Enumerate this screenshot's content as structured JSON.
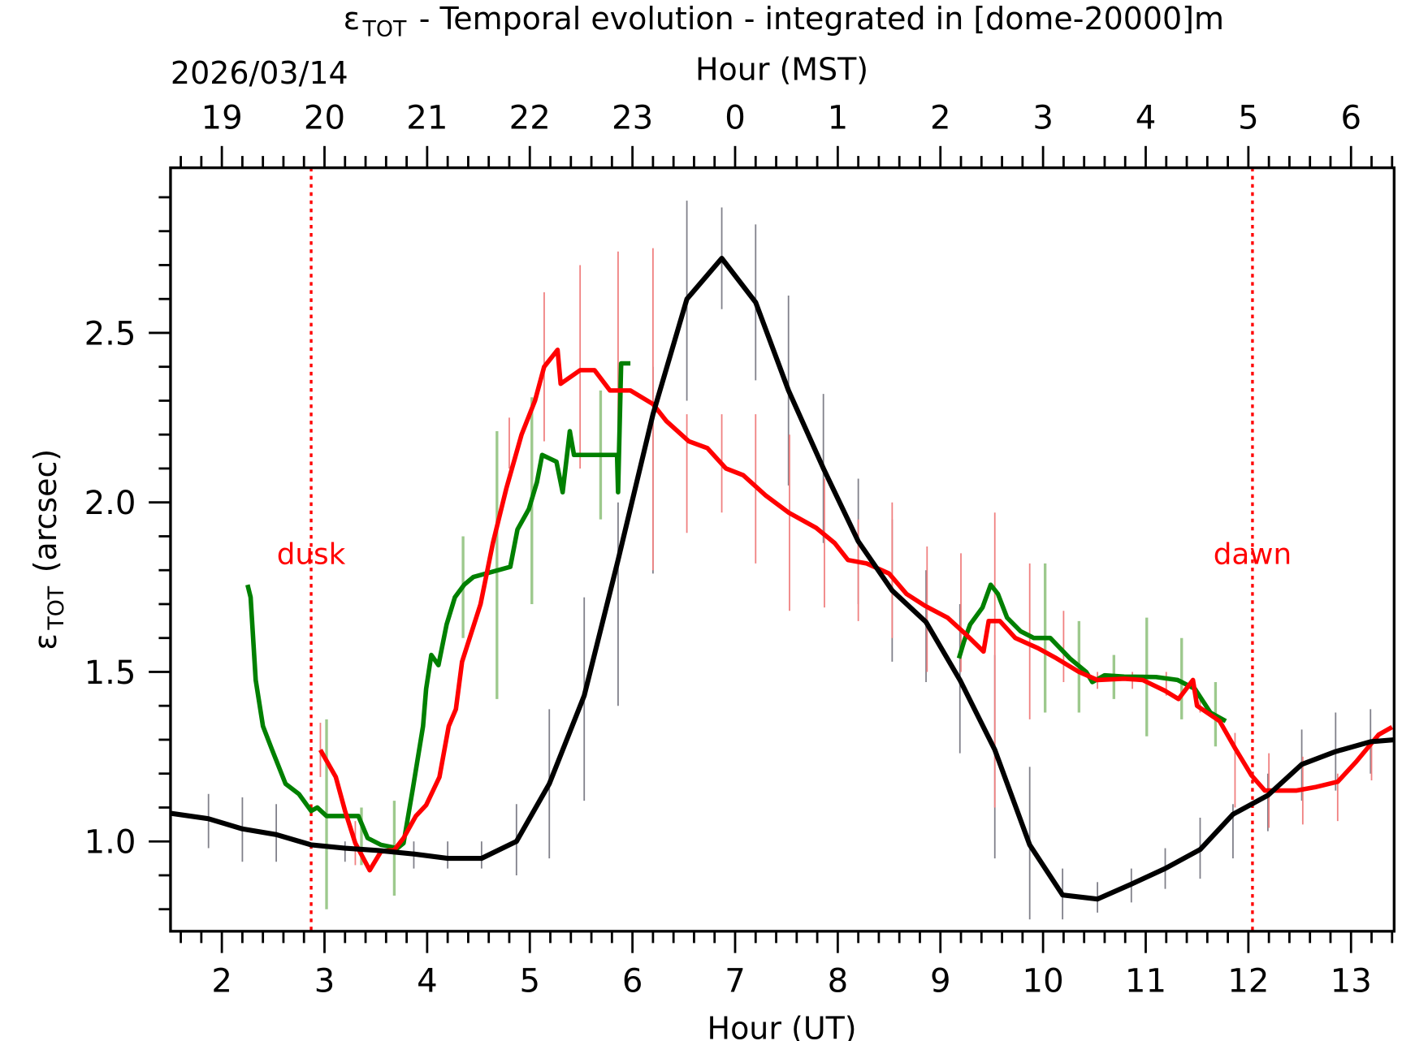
{
  "chart_data": {
    "type": "line",
    "title": {
      "symbol": "ε",
      "sub": "TOT",
      "rest": " - Temporal evolution - integrated in [dome-20000]m"
    },
    "xlabel": "Hour (UT)",
    "x2label": "Hour (MST)",
    "date_label": "2026/03/14",
    "ylabel": {
      "symbol": "ε",
      "sub": "TOT",
      "rest": " (arcsec)"
    },
    "xlim": [
      1.5,
      13.42
    ],
    "ylim": [
      0.735,
      2.987
    ],
    "x_ticks": [
      2,
      3,
      4,
      5,
      6,
      7,
      8,
      9,
      10,
      11,
      12,
      13
    ],
    "x_tick_labels": [
      "2",
      "3",
      "4",
      "5",
      "6",
      "7",
      "8",
      "9",
      "10",
      "11",
      "12",
      "13"
    ],
    "x2_tick_labels": [
      "19",
      "20",
      "21",
      "22",
      "23",
      "0",
      "1",
      "2",
      "3",
      "4",
      "5",
      "6"
    ],
    "y_ticks": [
      1.0,
      1.5,
      2.0,
      2.5
    ],
    "y_tick_labels": [
      "1.0",
      "1.5",
      "2.0",
      "2.5"
    ],
    "grid": false,
    "annotations": [
      {
        "text": "dusk",
        "x": 2.87,
        "y": 1.85
      },
      {
        "text": "dawn",
        "x": 12.04,
        "y": 1.85
      }
    ],
    "vlines": [
      2.87,
      12.04
    ],
    "colors": {
      "black": "#000000",
      "red": "#ff0000",
      "green": "#008000",
      "vline": "#ff0000",
      "black_err": "#80808a",
      "red_err": "#f08080",
      "green_err": "#9dc98d"
    },
    "series": [
      {
        "color": "black",
        "x": [
          1.5,
          1.87,
          2.2,
          2.53,
          2.87,
          3.2,
          3.53,
          3.87,
          4.2,
          4.53,
          4.87,
          5.19,
          5.53,
          5.86,
          6.2,
          6.53,
          6.87,
          7.2,
          7.52,
          7.86,
          8.2,
          8.53,
          8.86,
          9.19,
          9.53,
          9.87,
          10.19,
          10.53,
          10.86,
          11.19,
          11.53,
          11.85,
          12.19,
          12.52,
          12.85,
          13.19,
          13.42
        ],
        "y": [
          1.083,
          1.067,
          1.037,
          1.02,
          0.99,
          0.98,
          0.973,
          0.963,
          0.95,
          0.95,
          1.0,
          1.17,
          1.43,
          1.83,
          2.26,
          2.6,
          2.72,
          2.59,
          2.33,
          2.1,
          1.885,
          1.74,
          1.647,
          1.476,
          1.27,
          0.99,
          0.842,
          0.83,
          0.874,
          0.92,
          0.976,
          1.08,
          1.136,
          1.227,
          1.265,
          1.294,
          1.3
        ],
        "err_x": [
          1.5,
          1.87,
          2.2,
          2.53,
          3.2,
          3.87,
          4.2,
          4.53,
          4.87,
          5.19,
          5.53,
          5.86,
          6.2,
          6.53,
          6.87,
          7.2,
          7.52,
          7.86,
          8.2,
          8.53,
          8.86,
          9.19,
          9.53,
          9.87,
          10.19,
          10.53,
          10.86,
          11.19,
          11.53,
          11.85,
          12.19,
          12.52,
          12.85,
          13.19
        ],
        "err_hi": [
          1.17,
          1.14,
          1.13,
          1.11,
          1.0,
          1.0,
          1.0,
          1.0,
          1.11,
          1.39,
          1.72,
          2.0,
          2.4,
          2.89,
          2.87,
          2.82,
          2.61,
          2.32,
          2.07,
          1.95,
          1.8,
          1.7,
          1.55,
          1.22,
          0.92,
          0.88,
          0.92,
          0.98,
          1.07,
          1.11,
          1.2,
          1.33,
          1.38,
          1.39
        ],
        "err_lo": [
          0.98,
          0.98,
          0.94,
          0.94,
          0.94,
          0.92,
          0.92,
          0.92,
          0.9,
          0.95,
          1.12,
          1.4,
          1.79,
          2.3,
          2.57,
          2.36,
          2.05,
          1.88,
          1.7,
          1.53,
          1.47,
          1.26,
          0.95,
          0.77,
          0.77,
          0.79,
          0.82,
          0.86,
          0.89,
          0.95,
          1.03,
          1.12,
          1.15,
          1.2
        ]
      },
      {
        "color": "red",
        "x": [
          2.96,
          3.11,
          3.2,
          3.3,
          3.44,
          3.55,
          3.68,
          3.77,
          3.89,
          3.99,
          4.12,
          4.21,
          4.28,
          4.34,
          4.52,
          4.64,
          4.77,
          4.92,
          5.05,
          5.14,
          5.27,
          5.3,
          5.49,
          5.63,
          5.78,
          5.98,
          6.2,
          6.33,
          6.55,
          6.73,
          6.91,
          7.08,
          7.3,
          7.52,
          7.79,
          7.97,
          8.1,
          8.28,
          8.5,
          8.67,
          8.85,
          9.07,
          9.25,
          9.42,
          9.47,
          9.58,
          9.73,
          9.95,
          10.13,
          10.35,
          10.53,
          10.79,
          10.97,
          11.19,
          11.32,
          11.46,
          11.5,
          11.72,
          11.87,
          12.03,
          12.16,
          12.47,
          12.65,
          12.87,
          13.05,
          13.27,
          13.4
        ],
        "y": [
          1.27,
          1.19,
          1.09,
          0.995,
          0.915,
          0.97,
          0.975,
          1.01,
          1.075,
          1.107,
          1.19,
          1.34,
          1.39,
          1.53,
          1.7,
          1.88,
          2.04,
          2.2,
          2.3,
          2.4,
          2.45,
          2.35,
          2.39,
          2.39,
          2.33,
          2.33,
          2.29,
          2.24,
          2.18,
          2.16,
          2.1,
          2.08,
          2.02,
          1.97,
          1.925,
          1.88,
          1.83,
          1.82,
          1.79,
          1.73,
          1.695,
          1.66,
          1.61,
          1.56,
          1.65,
          1.65,
          1.6,
          1.57,
          1.54,
          1.5,
          1.476,
          1.48,
          1.476,
          1.444,
          1.42,
          1.476,
          1.4,
          1.355,
          1.275,
          1.195,
          1.15,
          1.15,
          1.16,
          1.176,
          1.235,
          1.315,
          1.337
        ],
        "err_x": [
          2.96,
          3.3,
          4.8,
          5.14,
          5.49,
          5.86,
          6.2,
          6.53,
          6.87,
          7.2,
          7.53,
          7.87,
          8.2,
          8.53,
          8.87,
          9.2,
          9.53,
          9.87,
          10.2,
          10.53,
          10.87,
          11.2,
          11.53,
          11.87,
          12.2,
          12.53,
          12.87,
          13.2
        ],
        "err_hi": [
          1.35,
          1.06,
          2.25,
          2.62,
          2.7,
          2.74,
          2.75,
          2.26,
          2.26,
          2.26,
          2.2,
          2.07,
          1.95,
          2.0,
          1.87,
          1.85,
          1.97,
          1.82,
          1.68,
          1.5,
          1.5,
          1.5,
          1.42,
          1.32,
          1.26,
          1.25,
          1.2,
          1.3
        ],
        "err_lo": [
          1.19,
          0.93,
          2.1,
          2.18,
          2.1,
          2.2,
          1.8,
          1.91,
          1.97,
          1.82,
          1.68,
          1.69,
          1.65,
          1.6,
          1.5,
          1.5,
          1.1,
          1.36,
          1.47,
          1.45,
          1.45,
          1.43,
          1.38,
          1.1,
          1.04,
          1.05,
          1.06,
          1.18
        ]
      },
      {
        "color": "green",
        "segments": [
          {
            "x": [
              2.25,
              2.28,
              2.33,
              2.4,
              2.49,
              2.62,
              2.75,
              2.87,
              2.93,
              3.02,
              3.33,
              3.42,
              3.55,
              3.71,
              3.77,
              3.86,
              3.96,
              3.99,
              4.04,
              4.11,
              4.19,
              4.27,
              4.36,
              4.45,
              4.81,
              4.88,
              4.99,
              5.07,
              5.12,
              5.26,
              5.32,
              5.39,
              5.43,
              5.85,
              5.86,
              5.89,
              5.98
            ],
            "y": [
              1.757,
              1.72,
              1.476,
              1.34,
              1.27,
              1.17,
              1.14,
              1.09,
              1.1,
              1.075,
              1.075,
              1.01,
              0.99,
              0.98,
              0.995,
              1.155,
              1.34,
              1.45,
              1.55,
              1.52,
              1.64,
              1.72,
              1.757,
              1.78,
              1.81,
              1.92,
              1.98,
              2.06,
              2.14,
              2.12,
              2.03,
              2.21,
              2.14,
              2.14,
              2.03,
              2.41,
              2.41
            ]
          },
          {
            "x": [
              9.18,
              9.23,
              9.29,
              9.41,
              9.49,
              9.56,
              9.65,
              9.78,
              9.91,
              10.07,
              10.26,
              10.42,
              10.48,
              10.6,
              10.79,
              11.1,
              11.31,
              11.48,
              11.63,
              11.78
            ],
            "y": [
              1.54,
              1.59,
              1.64,
              1.69,
              1.757,
              1.73,
              1.66,
              1.62,
              1.6,
              1.6,
              1.54,
              1.5,
              1.47,
              1.49,
              1.486,
              1.485,
              1.476,
              1.45,
              1.38,
              1.355
            ]
          }
        ],
        "err_x": [
          3.02,
          3.36,
          3.68,
          4.35,
          4.68,
          5.02,
          5.69,
          10.02,
          10.35,
          10.69,
          11.01,
          11.35,
          11.68
        ],
        "err_hi": [
          1.36,
          1.1,
          1.12,
          1.9,
          2.21,
          2.31,
          2.33,
          1.82,
          1.65,
          1.55,
          1.66,
          1.6,
          1.47
        ],
        "err_lo": [
          0.8,
          0.93,
          0.84,
          1.6,
          1.42,
          1.7,
          1.95,
          1.38,
          1.38,
          1.42,
          1.31,
          1.36,
          1.28
        ]
      }
    ]
  }
}
